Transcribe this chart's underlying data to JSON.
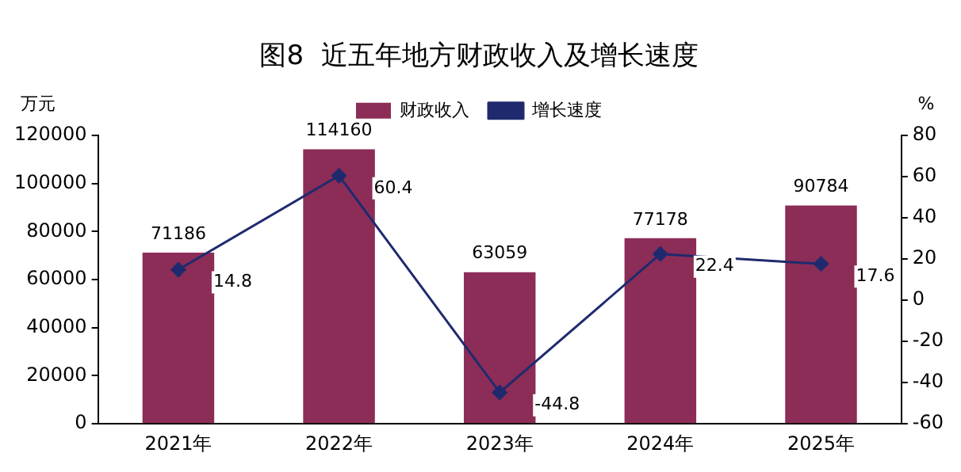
{
  "chart_data": {
    "type": "bar",
    "title": "图8  近五年地方财政收入及增长速度",
    "ylabel": "万元",
    "y2label": "%",
    "categories": [
      "2021年",
      "2022年",
      "2023年",
      "2024年",
      "2025年"
    ],
    "series": [
      {
        "name": "财政收入",
        "color": "#8b2d57",
        "values": [
          71186,
          114160,
          63059,
          77178,
          90784
        ]
      },
      {
        "name": "增长速度",
        "type": "line",
        "axis": "y2",
        "color": "#1f2a6e",
        "values": [
          14.8,
          60.4,
          -44.8,
          22.4,
          17.6
        ]
      }
    ],
    "ylim": [
      0,
      120000
    ],
    "yticks": [
      0,
      20000,
      40000,
      60000,
      80000,
      100000,
      120000
    ],
    "y2lim": [
      -60,
      80
    ],
    "y2ticks": [
      -60,
      -40,
      -20,
      0,
      20,
      40,
      60,
      80
    ],
    "data_labels": true,
    "grid": false,
    "legend": "top",
    "marker": "diamond",
    "line_style": "solid"
  }
}
